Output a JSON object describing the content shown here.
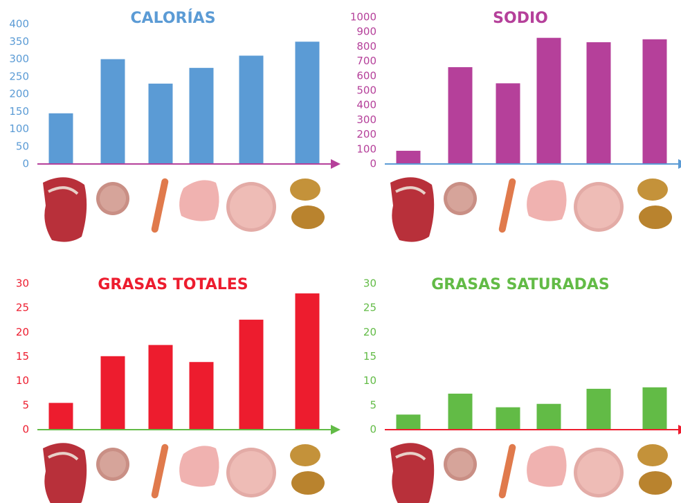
{
  "chart_data": [
    {
      "type": "bar",
      "title": "CALORÍAS",
      "categories": [
        null,
        null,
        null,
        null,
        null,
        null
      ],
      "values": [
        145,
        300,
        230,
        275,
        310,
        350
      ],
      "color": "#5b9bd5",
      "axis_color": "#b5409a",
      "ylim": [
        0,
        400
      ],
      "yticks": [
        0,
        50,
        100,
        150,
        200,
        250,
        300,
        350,
        400
      ]
    },
    {
      "type": "bar",
      "title": "SODIO",
      "categories": [
        null,
        null,
        null,
        null,
        null,
        null
      ],
      "values": [
        90,
        660,
        550,
        860,
        830,
        850
      ],
      "color": "#b5409a",
      "axis_color": "#5b9bd5",
      "ylim": [
        0,
        1000
      ],
      "yticks": [
        0,
        100,
        200,
        300,
        400,
        500,
        600,
        700,
        800,
        900,
        1000
      ]
    },
    {
      "type": "bar",
      "title": "GRASAS TOTALES",
      "categories": [
        null,
        null,
        null,
        null,
        null,
        null
      ],
      "values": [
        5.5,
        15.1,
        17.4,
        13.9,
        22.6,
        28
      ],
      "color": "#ed1c2e",
      "axis_color": "#62bb46",
      "ylim": [
        0,
        30
      ],
      "yticks": [
        0,
        5,
        10,
        15,
        20,
        25,
        30
      ]
    },
    {
      "type": "bar",
      "title": "GRASAS SATURADAS",
      "categories": [
        null,
        null,
        null,
        null,
        null,
        null
      ],
      "values": [
        3.1,
        7.4,
        4.6,
        5.3,
        8.4,
        8.7
      ],
      "color": "#62bb46",
      "axis_color": "#ed1c2e",
      "ylim": [
        0,
        30
      ],
      "yticks": [
        0,
        5,
        10,
        15,
        20,
        25,
        30
      ]
    }
  ]
}
